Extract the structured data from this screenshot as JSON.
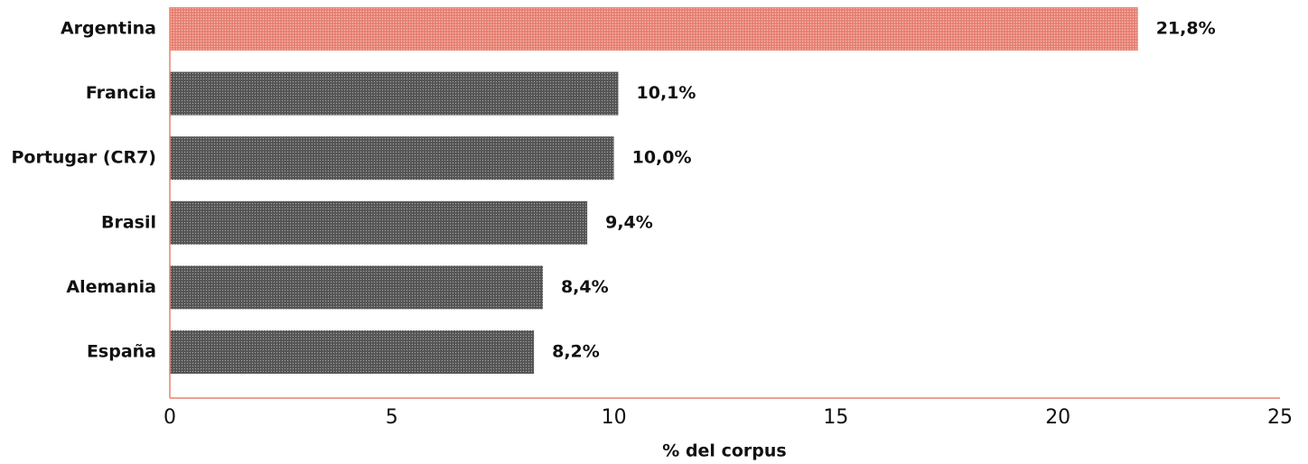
{
  "chart_data": {
    "type": "bar",
    "orientation": "horizontal",
    "xlabel": "% del corpus",
    "categories": [
      "Argentina",
      "Francia",
      "Portugar (CR7)",
      "Brasil",
      "Alemania",
      "España"
    ],
    "values": [
      21.8,
      10.1,
      10.0,
      9.4,
      8.4,
      8.2
    ],
    "value_labels": [
      "21,8%",
      "10,1%",
      "10,0%",
      "9,4%",
      "8,4%",
      "8,2%"
    ],
    "colors": [
      "#ef8a7c",
      "#5a5a5a",
      "#5a5a5a",
      "#5a5a5a",
      "#5a5a5a",
      "#5a5a5a"
    ],
    "axis_color": "#e8826f",
    "xlim": [
      0,
      25
    ],
    "xticks": [
      0,
      5,
      10,
      15,
      20,
      25
    ],
    "grid": false
  }
}
